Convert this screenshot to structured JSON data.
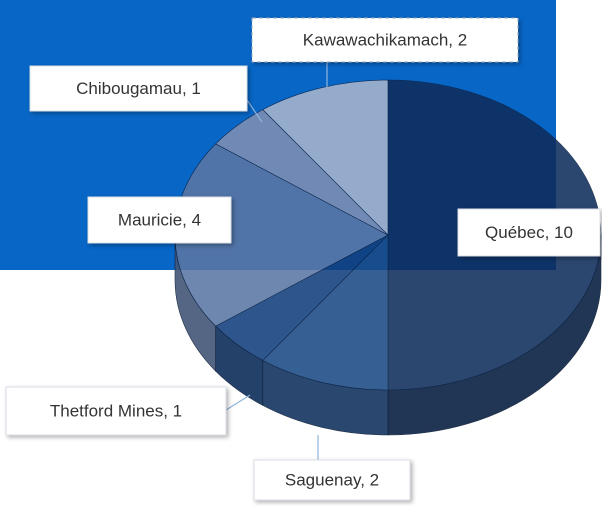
{
  "chart_data": {
    "type": "pie3d",
    "values": [
      10,
      2,
      1,
      4,
      1,
      2
    ],
    "value_labels": [
      "Québec, 10",
      "Saguenay, 2",
      "Thetford Mines, 1",
      "Mauricie, 4",
      "Chibougamau, 1",
      "Kawawachikamach, 2"
    ],
    "colors": [
      "#0e2d5c",
      "#1b4a86",
      "#123f7d",
      "#5b77a5",
      "#7f90b3",
      "#a9b5cd"
    ]
  }
}
